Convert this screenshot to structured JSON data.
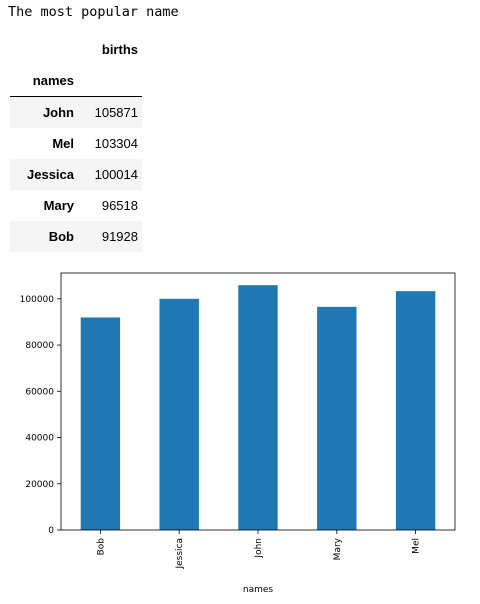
{
  "output": {
    "heading": "The most popular name"
  },
  "table": {
    "column_header": "births",
    "index_name": "names",
    "rows": [
      {
        "name": "John",
        "births": "105871"
      },
      {
        "name": "Mel",
        "births": "103304"
      },
      {
        "name": "Jessica",
        "births": "100014"
      },
      {
        "name": "Mary",
        "births": "96518"
      },
      {
        "name": "Bob",
        "births": "91928"
      }
    ]
  },
  "chart_data": {
    "type": "bar",
    "categories": [
      "Bob",
      "Jessica",
      "John",
      "Mary",
      "Mel"
    ],
    "values": [
      91928,
      100014,
      105871,
      96518,
      103304
    ],
    "xlabel": "names",
    "ylabel": "",
    "ylim": [
      0,
      111163
    ],
    "yticks": [
      0,
      20000,
      40000,
      60000,
      80000,
      100000
    ],
    "grid": false,
    "bar_color": "#1f77b4"
  }
}
